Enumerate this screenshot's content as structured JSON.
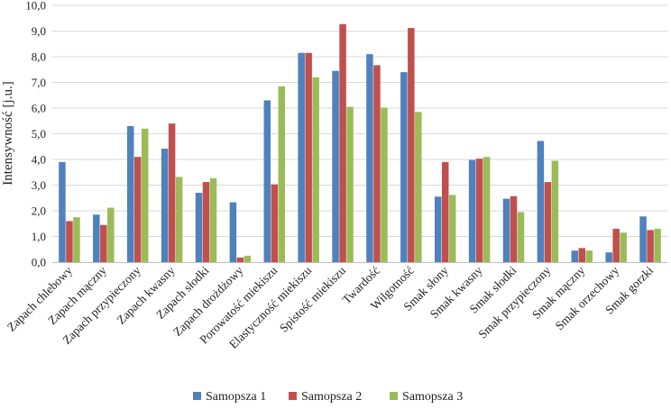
{
  "chart_data": {
    "type": "bar",
    "title": "",
    "xlabel": "",
    "ylabel": "Intensywność [j.u.]",
    "ylim": [
      0,
      10
    ],
    "ytick_step": 1,
    "ytick_labels": [
      "0,0",
      "1,0",
      "2,0",
      "3,0",
      "4,0",
      "5,0",
      "6,0",
      "7,0",
      "8,0",
      "9,0",
      "10,0"
    ],
    "grid": true,
    "legend_position": "bottom",
    "categories": [
      "Zapach chlebowy",
      "Zapach mączny",
      "Zapach przypieczony",
      "Zapach kwasny",
      "Zapach słodki",
      "Zapach drożdżowy",
      "Porowatość miekiszu",
      "Elastyczność miekiszu",
      "Spistość miekiszu",
      "Twardość",
      "Wilgotność",
      "Smak słony",
      "Smak kwasny",
      "Smak słodki",
      "Smak przypieczony",
      "Smak mączny",
      "Smak orzechowy",
      "Smak gorzki"
    ],
    "series": [
      {
        "name": "Samopsza 1",
        "color": "#4f81bd",
        "values": [
          3.9,
          1.85,
          5.3,
          4.42,
          2.7,
          2.33,
          6.3,
          8.15,
          7.45,
          8.1,
          7.4,
          2.55,
          3.98,
          2.47,
          4.72,
          0.45,
          0.38,
          1.78
        ]
      },
      {
        "name": "Samopsza 2",
        "color": "#c0504d",
        "values": [
          1.6,
          1.45,
          4.1,
          5.4,
          3.12,
          0.18,
          3.03,
          8.15,
          9.27,
          7.67,
          9.12,
          3.9,
          4.03,
          2.57,
          3.12,
          0.55,
          1.3,
          1.25
        ]
      },
      {
        "name": "Samopsza 3",
        "color": "#9bbb59",
        "values": [
          1.75,
          2.12,
          5.2,
          3.32,
          3.27,
          0.25,
          6.85,
          7.2,
          6.05,
          6.02,
          5.85,
          2.62,
          4.1,
          1.95,
          3.95,
          0.45,
          1.15,
          1.3
        ]
      }
    ]
  }
}
